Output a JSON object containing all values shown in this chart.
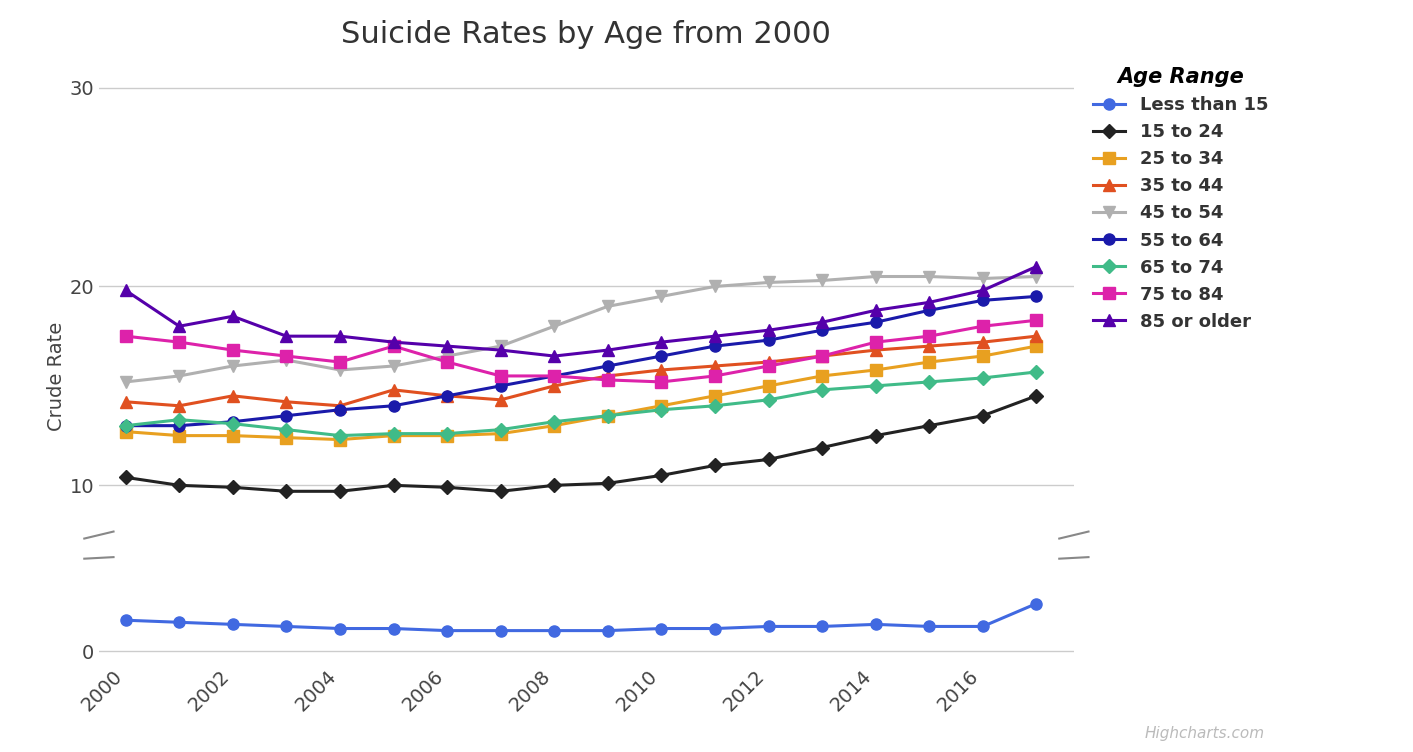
{
  "title": "Suicide Rates by Age from 2000",
  "ylabel": "Crude Rate",
  "background_color": "#ffffff",
  "grid_color": "#cccccc",
  "years": [
    2000,
    2001,
    2002,
    2003,
    2004,
    2005,
    2006,
    2007,
    2008,
    2009,
    2010,
    2011,
    2012,
    2013,
    2014,
    2015,
    2016,
    2017
  ],
  "series": [
    {
      "label": "Less than 15",
      "color": "#4169e1",
      "marker": "o",
      "markersize": 8,
      "data": [
        1.5,
        1.4,
        1.3,
        1.2,
        1.1,
        1.1,
        1.0,
        1.0,
        1.0,
        1.0,
        1.1,
        1.1,
        1.2,
        1.2,
        1.3,
        1.2,
        1.2,
        2.3
      ]
    },
    {
      "label": "15 to 24",
      "color": "#222222",
      "marker": "D",
      "markersize": 7,
      "data": [
        10.4,
        10.0,
        9.9,
        9.7,
        9.7,
        10.0,
        9.9,
        9.7,
        10.0,
        10.1,
        10.5,
        11.0,
        11.3,
        11.9,
        12.5,
        13.0,
        13.5,
        14.5
      ]
    },
    {
      "label": "25 to 34",
      "color": "#e8a020",
      "marker": "s",
      "markersize": 8,
      "data": [
        12.7,
        12.5,
        12.5,
        12.4,
        12.3,
        12.5,
        12.5,
        12.6,
        13.0,
        13.5,
        14.0,
        14.5,
        15.0,
        15.5,
        15.8,
        16.2,
        16.5,
        17.0
      ]
    },
    {
      "label": "35 to 44",
      "color": "#e05020",
      "marker": "^",
      "markersize": 8,
      "data": [
        14.2,
        14.0,
        14.5,
        14.2,
        14.0,
        14.8,
        14.5,
        14.3,
        15.0,
        15.5,
        15.8,
        16.0,
        16.2,
        16.5,
        16.8,
        17.0,
        17.2,
        17.5
      ]
    },
    {
      "label": "45 to 54",
      "color": "#b0b0b0",
      "marker": "v",
      "markersize": 8,
      "data": [
        15.2,
        15.5,
        16.0,
        16.3,
        15.8,
        16.0,
        16.5,
        17.0,
        18.0,
        19.0,
        19.5,
        20.0,
        20.2,
        20.3,
        20.5,
        20.5,
        20.4,
        20.5
      ]
    },
    {
      "label": "55 to 64",
      "color": "#1a1aaa",
      "marker": "o",
      "markersize": 8,
      "data": [
        13.0,
        13.0,
        13.2,
        13.5,
        13.8,
        14.0,
        14.5,
        15.0,
        15.5,
        16.0,
        16.5,
        17.0,
        17.3,
        17.8,
        18.2,
        18.8,
        19.3,
        19.5
      ]
    },
    {
      "label": "65 to 74",
      "color": "#40bb88",
      "marker": "D",
      "markersize": 7,
      "data": [
        13.0,
        13.3,
        13.1,
        12.8,
        12.5,
        12.6,
        12.6,
        12.8,
        13.2,
        13.5,
        13.8,
        14.0,
        14.3,
        14.8,
        15.0,
        15.2,
        15.4,
        15.7
      ]
    },
    {
      "label": "75 to 84",
      "color": "#dd22aa",
      "marker": "s",
      "markersize": 8,
      "data": [
        17.5,
        17.2,
        16.8,
        16.5,
        16.2,
        17.0,
        16.2,
        15.5,
        15.5,
        15.3,
        15.2,
        15.5,
        16.0,
        16.5,
        17.2,
        17.5,
        18.0,
        18.3
      ]
    },
    {
      "label": "85 or older",
      "color": "#5500aa",
      "marker": "^",
      "markersize": 9,
      "data": [
        19.8,
        18.0,
        18.5,
        17.5,
        17.5,
        17.2,
        17.0,
        16.8,
        16.5,
        16.8,
        17.2,
        17.5,
        17.8,
        18.2,
        18.8,
        19.2,
        19.8,
        21.0
      ]
    }
  ],
  "upper_ylim": [
    7.5,
    31
  ],
  "upper_yticks": [
    10,
    20,
    30
  ],
  "lower_ylim": [
    -0.5,
    4.5
  ],
  "lower_yticks": [
    0
  ],
  "legend_title": "Age Range",
  "watermark": "Highcharts.com",
  "xticks": [
    2000,
    2002,
    2004,
    2006,
    2008,
    2010,
    2012,
    2014,
    2016
  ]
}
